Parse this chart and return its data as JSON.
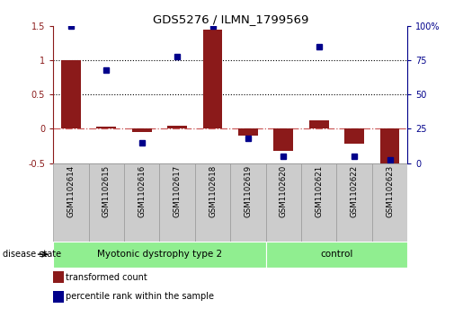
{
  "title": "GDS5276 / ILMN_1799569",
  "samples": [
    "GSM1102614",
    "GSM1102615",
    "GSM1102616",
    "GSM1102617",
    "GSM1102618",
    "GSM1102619",
    "GSM1102620",
    "GSM1102621",
    "GSM1102622",
    "GSM1102623"
  ],
  "transformed_count": [
    1.0,
    0.03,
    -0.05,
    0.04,
    1.45,
    -0.1,
    -0.32,
    0.12,
    -0.22,
    -0.52
  ],
  "percentile_rank": [
    100,
    68,
    15,
    78,
    100,
    18,
    5,
    85,
    5,
    2
  ],
  "groups": [
    {
      "label": "Myotonic dystrophy type 2",
      "start": 0,
      "end": 6,
      "color": "#90EE90"
    },
    {
      "label": "control",
      "start": 6,
      "end": 10,
      "color": "#90EE90"
    }
  ],
  "disease_state_label": "disease state",
  "left_ylim": [
    -0.5,
    1.5
  ],
  "right_ylim": [
    0,
    100
  ],
  "left_yticks": [
    -0.5,
    0.0,
    0.5,
    1.0,
    1.5
  ],
  "right_yticks": [
    0,
    25,
    50,
    75,
    100
  ],
  "left_ytick_labels": [
    "-0.5",
    "0",
    "0.5",
    "1",
    "1.5"
  ],
  "right_ytick_labels": [
    "0",
    "25",
    "50",
    "75",
    "100%"
  ],
  "hlines": [
    0.5,
    1.0
  ],
  "bar_color": "#8B1A1A",
  "dot_color": "#00008B",
  "zero_line_color": "#CD5C5C",
  "hline_color": "#000000",
  "bg_color": "#FFFFFF",
  "legend_bar_label": "transformed count",
  "legend_dot_label": "percentile rank within the sample",
  "gray_box_color": "#CCCCCC",
  "label_box_edge_color": "#999999"
}
